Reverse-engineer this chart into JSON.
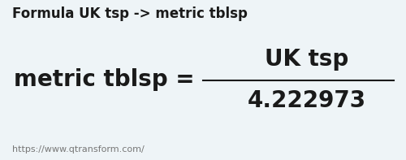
{
  "background_color": "#eef4f7",
  "header_text": "Formula UK tsp -> metric tblsp",
  "header_fontsize": 12,
  "header_color": "#1a1a1a",
  "numerator": "UK tsp",
  "left_label": "metric tblsp",
  "equals_sign": "=",
  "denominator": "4.222973",
  "main_fontsize": 20,
  "denom_fontsize": 20,
  "footer_text": "https://www.qtransform.com/",
  "footer_fontsize": 8,
  "footer_color": "#777777",
  "line_color": "#1a1a1a",
  "text_color": "#1a1a1a"
}
